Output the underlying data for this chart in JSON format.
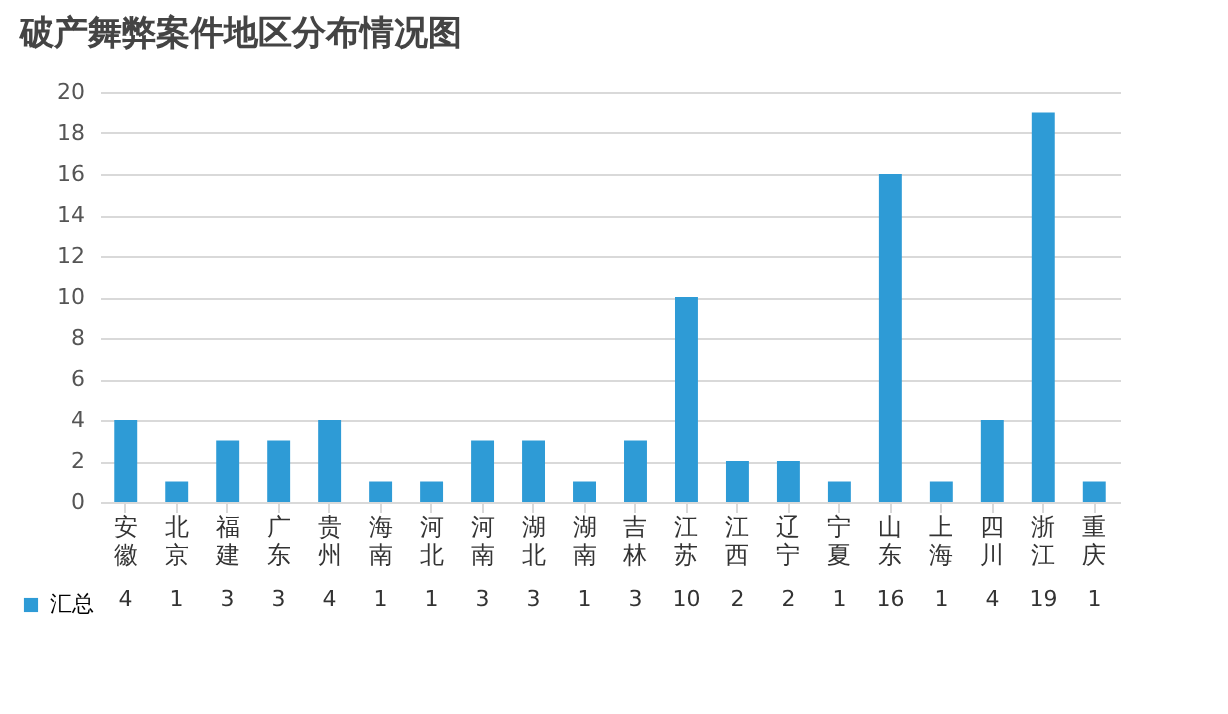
{
  "chart_data": {
    "type": "bar",
    "title": "破产舞弊案件地区分布情况图",
    "categories": [
      "安徽",
      "北京",
      "福建",
      "广东",
      "贵州",
      "海南",
      "河北",
      "河南",
      "湖北",
      "湖南",
      "吉林",
      "江苏",
      "江西",
      "辽宁",
      "宁夏",
      "山东",
      "上海",
      "四川",
      "浙江",
      "重庆"
    ],
    "series": [
      {
        "name": "汇总",
        "color": "#2e9bd6",
        "values": [
          4,
          1,
          3,
          3,
          4,
          1,
          1,
          3,
          3,
          1,
          3,
          10,
          2,
          2,
          1,
          16,
          1,
          4,
          19,
          1
        ]
      }
    ],
    "ylim": [
      0,
      20
    ],
    "yticks": [
      0,
      2,
      4,
      6,
      8,
      10,
      12,
      14,
      16,
      18,
      20
    ],
    "grid": "y",
    "data_labels": true,
    "legend": "bottom left"
  }
}
